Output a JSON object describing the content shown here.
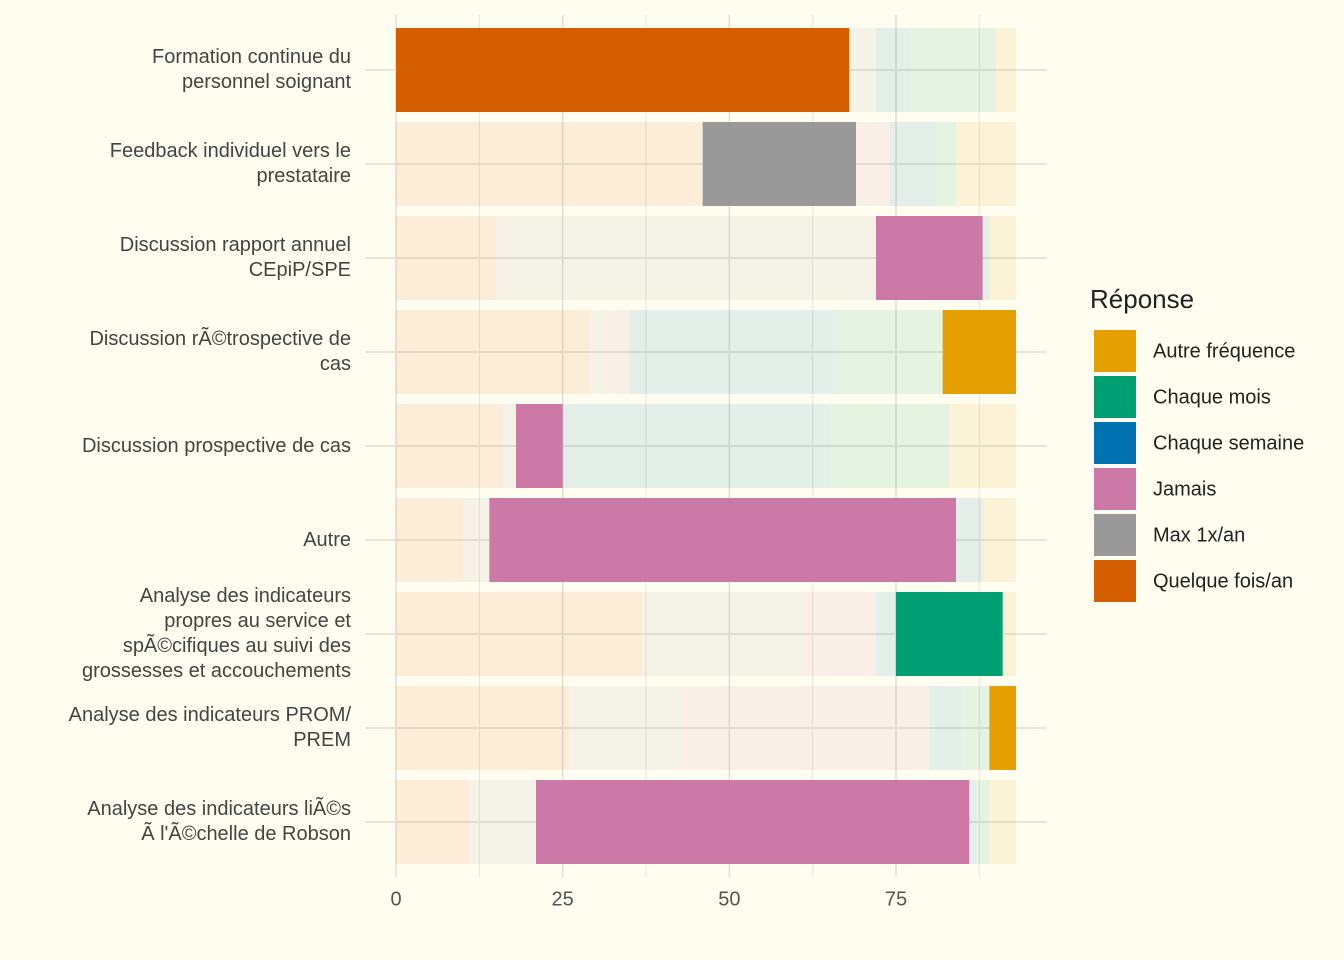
{
  "chart_data": {
    "type": "stacked_barh",
    "categories": [
      "Formation continue du\npersonnel soignant",
      "Feedback individuel vers le\nprestataire",
      "Discussion rapport annuel\nCEpiP/SPE",
      "Discussion rÃ©trospective de\ncas",
      "Discussion prospective de cas",
      "Autre",
      "Analyse des indicateurs\npropres au service et\nspÃ©cifiques au suivi des\ngrossesses et accouchements",
      "Analyse des indicateurs PROM/\nPREM",
      "Analyse des indicateurs liÃ©s\nÃ  l'Ã©chelle de Robson"
    ],
    "series": [
      {
        "name": "Autre fréquence",
        "color": "#E69F00",
        "values": [
          3,
          9,
          4,
          11,
          10,
          5,
          2,
          4,
          4
        ]
      },
      {
        "name": "Chaque mois",
        "color": "#009E73",
        "values": [
          13,
          3,
          0,
          16,
          18,
          0,
          16,
          4,
          2
        ]
      },
      {
        "name": "Chaque semaine",
        "color": "#0072B2",
        "values": [
          5,
          7,
          1,
          31,
          40,
          4,
          3,
          5,
          1
        ]
      },
      {
        "name": "Jamais",
        "color": "#CC79A7",
        "values": [
          0,
          5,
          16,
          4,
          7,
          70,
          11,
          37,
          65
        ]
      },
      {
        "name": "Max 1x/an",
        "color": "#999999",
        "values": [
          4,
          23,
          57,
          2,
          2,
          4,
          24,
          17,
          10
        ]
      },
      {
        "name": "Quelque fois/an",
        "color": "#D55E00",
        "values": [
          68,
          46,
          15,
          29,
          16,
          10,
          37,
          26,
          11
        ]
      }
    ],
    "highlight_series": [
      5,
      4,
      3,
      0,
      3,
      3,
      1,
      0,
      3
    ],
    "legend_title": "Réponse",
    "legend_position": "right",
    "xlim": [
      -4.65,
      97.65
    ],
    "xticks": [
      0,
      25,
      50,
      75
    ],
    "grid": true
  }
}
